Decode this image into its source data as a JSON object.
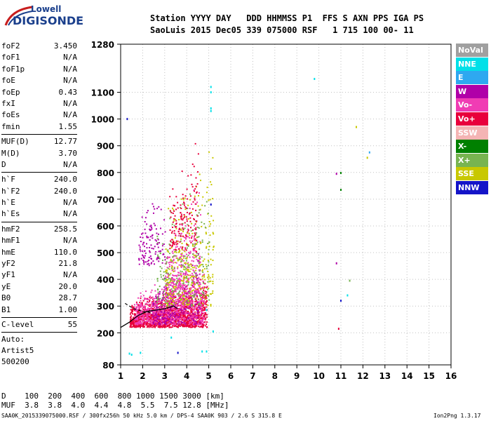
{
  "logo": {
    "line1": "Lowell",
    "line2": "DIGISONDE"
  },
  "header": {
    "labels": "Station YYYY DAY   DDD HHMMSS P1  FFS S AXN PPS IGA PS",
    "values": "SaoLuis 2015 Dec05 339 075000 RSF   1 715 100 00- 11"
  },
  "params": [
    {
      "k": "foF2",
      "v": "3.450"
    },
    {
      "k": "foF1",
      "v": "N/A"
    },
    {
      "k": "foF1p",
      "v": "N/A"
    },
    {
      "k": "foE",
      "v": "N/A"
    },
    {
      "k": "foEp",
      "v": "0.43"
    },
    {
      "k": "fxI",
      "v": "N/A"
    },
    {
      "k": "foEs",
      "v": "N/A"
    },
    {
      "k": "fmin",
      "v": "1.55"
    },
    {
      "k": "MUF(D)",
      "v": "12.77",
      "sep": true
    },
    {
      "k": "M(D)",
      "v": "3.70"
    },
    {
      "k": "D",
      "v": "N/A"
    },
    {
      "k": "h`F",
      "v": "240.0",
      "sep": true
    },
    {
      "k": "h`F2",
      "v": "240.0"
    },
    {
      "k": "h`E",
      "v": "N/A"
    },
    {
      "k": "h`Es",
      "v": "N/A"
    },
    {
      "k": "hmF2",
      "v": "258.5",
      "sep": true
    },
    {
      "k": "hmF1",
      "v": "N/A"
    },
    {
      "k": "hmE",
      "v": "110.0"
    },
    {
      "k": "yF2",
      "v": "21.8"
    },
    {
      "k": "yF1",
      "v": "N/A"
    },
    {
      "k": "yE",
      "v": "20.0"
    },
    {
      "k": "B0",
      "v": "28.7"
    },
    {
      "k": "B1",
      "v": "1.00"
    },
    {
      "k": "C-level",
      "v": "55",
      "sep": true
    }
  ],
  "autoscaling": [
    "Auto:",
    "Artist5",
    "500200"
  ],
  "legend": [
    {
      "label": "NoVal",
      "color": "#a0a0a0"
    },
    {
      "label": "NNE",
      "color": "#00e0e8"
    },
    {
      "label": "E",
      "color": "#2ea8f0"
    },
    {
      "label": "W",
      "color": "#b000a8"
    },
    {
      "label": "Vo-",
      "color": "#f03cb4"
    },
    {
      "label": "Vo+",
      "color": "#e8003c"
    },
    {
      "label": "SSW",
      "color": "#f4b4b4"
    },
    {
      "label": "X-",
      "color": "#008000"
    },
    {
      "label": "X+",
      "color": "#78b450"
    },
    {
      "label": "SSE",
      "color": "#c8c800"
    },
    {
      "label": "NNW",
      "color": "#1414c8"
    }
  ],
  "bottom_table": {
    "d_row": "D    100  200  400  600  800 1000 1500 3000 [km]",
    "muf_row": "MUF  3.8  3.8  4.0  4.4  4.8  5.5  7.5 12.8 [MHz]"
  },
  "footer": "SAA0K_2015339075000.RSF / 300fx256h 50 kHz 5.0 km / DPS-4 SAA0K 903 / 2.6 S 315.8 E",
  "version": "Ion2Png 1.3.17",
  "chart_data": {
    "type": "scatter",
    "x_ticks": [
      1,
      2,
      3,
      4,
      5,
      6,
      7,
      8,
      9,
      10,
      11,
      12,
      13,
      14,
      15,
      16
    ],
    "y_ticks": [
      80,
      200,
      300,
      400,
      500,
      600,
      700,
      800,
      900,
      1000,
      1100,
      1280
    ],
    "xlim": [
      1,
      16
    ],
    "ylim": [
      80,
      1280
    ],
    "grid": true,
    "clusters": [
      {
        "color": "#e8003c",
        "fmin": 1.4,
        "fmax": 4.9,
        "hmin": 220,
        "hmax": 420,
        "count": 1400
      },
      {
        "color": "#f03cb4",
        "fmin": 1.6,
        "fmax": 4.8,
        "hmin": 230,
        "hmax": 470,
        "count": 600
      },
      {
        "color": "#b000a8",
        "fmin": 2.4,
        "fmax": 4.6,
        "hmin": 230,
        "hmax": 560,
        "count": 250
      },
      {
        "color": "#f03cb4",
        "fmin": 3.0,
        "fmax": 4.6,
        "hmin": 300,
        "hmax": 800,
        "count": 350
      },
      {
        "color": "#c8c800",
        "fmin": 3.0,
        "fmax": 5.2,
        "hmin": 300,
        "hmax": 1000,
        "count": 300
      },
      {
        "color": "#78b450",
        "fmin": 2.6,
        "fmax": 5.0,
        "hmin": 300,
        "hmax": 900,
        "count": 200
      },
      {
        "color": "#e8003c",
        "fmin": 3.2,
        "fmax": 4.5,
        "hmin": 500,
        "hmax": 1020,
        "count": 150
      },
      {
        "color": "#b000a8",
        "fmin": 1.8,
        "fmax": 3.0,
        "hmin": 450,
        "hmax": 830,
        "count": 120
      }
    ],
    "points": [
      {
        "f": 5.1,
        "h": 1120,
        "c": "#00e0e8"
      },
      {
        "f": 5.1,
        "h": 1100,
        "c": "#00e0e8"
      },
      {
        "f": 5.1,
        "h": 1040,
        "c": "#00e0e8"
      },
      {
        "f": 5.1,
        "h": 1030,
        "c": "#00e0e8"
      },
      {
        "f": 9.8,
        "h": 1150,
        "c": "#00e0e8"
      },
      {
        "f": 1.3,
        "h": 1000,
        "c": "#1414c8"
      },
      {
        "f": 5.1,
        "h": 680,
        "c": "#1414c8"
      },
      {
        "f": 10.8,
        "h": 795,
        "c": "#b000a8"
      },
      {
        "f": 11.0,
        "h": 798,
        "c": "#008000"
      },
      {
        "f": 11.0,
        "h": 735,
        "c": "#008000"
      },
      {
        "f": 10.8,
        "h": 460,
        "c": "#b000a8"
      },
      {
        "f": 11.0,
        "h": 320,
        "c": "#1414c8"
      },
      {
        "f": 10.9,
        "h": 215,
        "c": "#e8003c"
      },
      {
        "f": 11.7,
        "h": 970,
        "c": "#c8c800"
      },
      {
        "f": 12.2,
        "h": 855,
        "c": "#c8c800"
      },
      {
        "f": 12.3,
        "h": 875,
        "c": "#2ea8f0"
      },
      {
        "f": 11.3,
        "h": 340,
        "c": "#00e0e8"
      },
      {
        "f": 11.4,
        "h": 395,
        "c": "#78b450"
      },
      {
        "f": 4.9,
        "h": 285,
        "c": "#00e0e8"
      },
      {
        "f": 5.2,
        "h": 205,
        "c": "#00e0e8"
      },
      {
        "f": 4.7,
        "h": 130,
        "c": "#00e0e8"
      },
      {
        "f": 4.9,
        "h": 130,
        "c": "#00e0e8"
      },
      {
        "f": 1.4,
        "h": 122,
        "c": "#00e0e8"
      },
      {
        "f": 1.5,
        "h": 118,
        "c": "#00e0e8"
      },
      {
        "f": 1.9,
        "h": 125,
        "c": "#00e0e8"
      },
      {
        "f": 3.6,
        "h": 125,
        "c": "#1414c8"
      },
      {
        "f": 3.3,
        "h": 182,
        "c": "#00e0e8"
      }
    ],
    "trace": [
      [
        1.0,
        220
      ],
      [
        1.4,
        240
      ],
      [
        1.8,
        265
      ],
      [
        2.2,
        280
      ],
      [
        2.6,
        285
      ],
      [
        3.0,
        290
      ],
      [
        3.4,
        300
      ],
      [
        3.6,
        290
      ]
    ],
    "trace_dashed": [
      [
        1.2,
        310
      ],
      [
        1.6,
        290
      ],
      [
        2.0,
        280
      ],
      [
        2.4,
        275
      ]
    ]
  }
}
